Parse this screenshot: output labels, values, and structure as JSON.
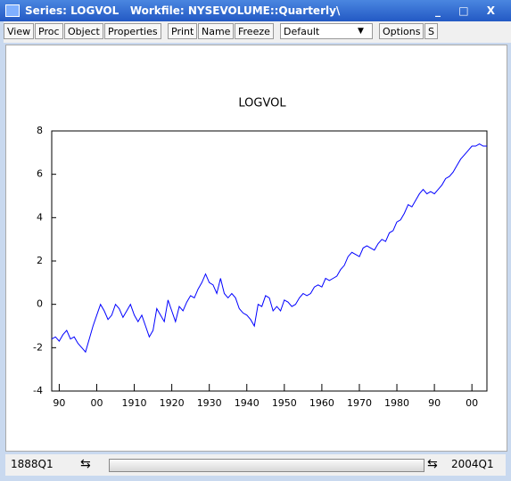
{
  "window": {
    "title": "Series: LOGVOL",
    "workfile": "Workfile: NYSEVOLUME::Quarterly\\"
  },
  "toolbar": {
    "buttons": [
      "View",
      "Proc",
      "Object",
      "Properties"
    ],
    "buttons2": [
      "Print",
      "Name",
      "Freeze"
    ],
    "dropdown": "Default",
    "buttons3": [
      "Options",
      "S"
    ]
  },
  "footer": {
    "start": "1888Q1",
    "end": "2004Q1"
  },
  "chart_data": {
    "type": "line",
    "title": "LOGVOL",
    "color": "#0000ff",
    "x": [
      1888,
      1889,
      1890,
      1891,
      1892,
      1893,
      1894,
      1895,
      1896,
      1897,
      1898,
      1899,
      1900,
      1901,
      1902,
      1903,
      1904,
      1905,
      1906,
      1907,
      1908,
      1909,
      1910,
      1911,
      1912,
      1913,
      1914,
      1915,
      1916,
      1917,
      1918,
      1919,
      1920,
      1921,
      1922,
      1923,
      1924,
      1925,
      1926,
      1927,
      1928,
      1929,
      1930,
      1931,
      1932,
      1933,
      1934,
      1935,
      1936,
      1937,
      1938,
      1939,
      1940,
      1941,
      1942,
      1943,
      1944,
      1945,
      1946,
      1947,
      1948,
      1949,
      1950,
      1951,
      1952,
      1953,
      1954,
      1955,
      1956,
      1957,
      1958,
      1959,
      1960,
      1961,
      1962,
      1963,
      1964,
      1965,
      1966,
      1967,
      1968,
      1969,
      1970,
      1971,
      1972,
      1973,
      1974,
      1975,
      1976,
      1977,
      1978,
      1979,
      1980,
      1981,
      1982,
      1983,
      1984,
      1985,
      1986,
      1987,
      1988,
      1989,
      1990,
      1991,
      1992,
      1993,
      1994,
      1995,
      1996,
      1997,
      1998,
      1999,
      2000,
      2001,
      2002,
      2003,
      2004
    ],
    "values": [
      -1.6,
      -1.5,
      -1.7,
      -1.4,
      -1.2,
      -1.6,
      -1.5,
      -1.8,
      -2.0,
      -2.2,
      -1.6,
      -1.0,
      -0.5,
      0.0,
      -0.3,
      -0.7,
      -0.5,
      0.0,
      -0.2,
      -0.6,
      -0.3,
      0.0,
      -0.5,
      -0.8,
      -0.5,
      -1.0,
      -1.5,
      -1.2,
      -0.2,
      -0.5,
      -0.8,
      0.2,
      -0.3,
      -0.8,
      -0.1,
      -0.3,
      0.1,
      0.4,
      0.3,
      0.7,
      1.0,
      1.4,
      1.0,
      0.9,
      0.5,
      1.2,
      0.5,
      0.3,
      0.5,
      0.3,
      -0.2,
      -0.4,
      -0.5,
      -0.7,
      -1.0,
      0.0,
      -0.1,
      0.4,
      0.3,
      -0.3,
      -0.1,
      -0.3,
      0.2,
      0.1,
      -0.1,
      0.0,
      0.3,
      0.5,
      0.4,
      0.5,
      0.8,
      0.9,
      0.8,
      1.2,
      1.1,
      1.2,
      1.3,
      1.6,
      1.8,
      2.2,
      2.4,
      2.3,
      2.2,
      2.6,
      2.7,
      2.6,
      2.5,
      2.8,
      3.0,
      2.9,
      3.3,
      3.4,
      3.8,
      3.9,
      4.2,
      4.6,
      4.5,
      4.8,
      5.1,
      5.3,
      5.1,
      5.2,
      5.1,
      5.3,
      5.5,
      5.8,
      5.9,
      6.1,
      6.4,
      6.7,
      6.9,
      7.1,
      7.3,
      7.3,
      7.4,
      7.3,
      7.3
    ],
    "xlim": [
      1888,
      2004
    ],
    "xticks": [
      {
        "value": 1890,
        "label": "90"
      },
      {
        "value": 1900,
        "label": "00"
      },
      1910,
      1920,
      1930,
      1940,
      1950,
      1960,
      1970,
      1980,
      {
        "value": 1990,
        "label": "90"
      },
      {
        "value": 2000,
        "label": "00"
      }
    ],
    "ylim": [
      -4,
      8
    ],
    "yticks": [
      -4,
      -2,
      0,
      2,
      4,
      6,
      8
    ]
  }
}
